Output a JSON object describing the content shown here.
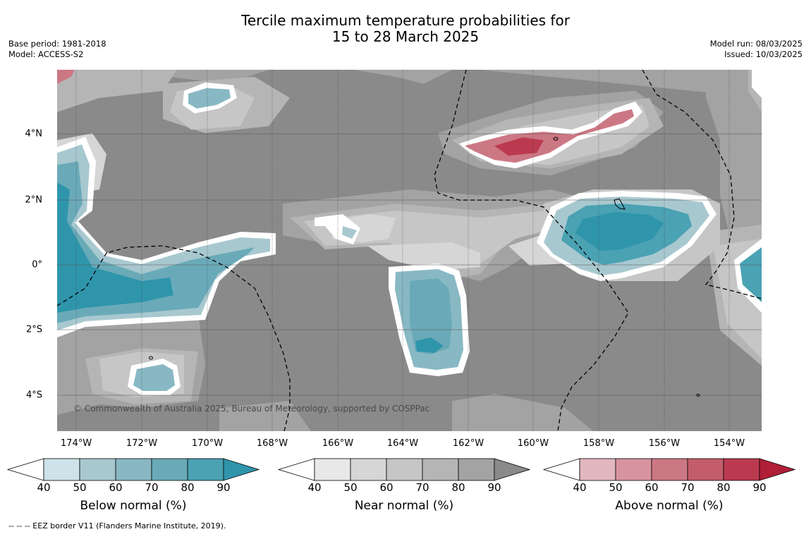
{
  "header": {
    "title_line1": "Tercile maximum temperature probabilities for",
    "title_line2": "15 to 28 March 2025",
    "base_period": "Base period: 1981-2018",
    "model": "Model: ACCESS-S2",
    "model_run": "Model run: 08/03/2025",
    "issued": "Issued: 10/03/2025"
  },
  "map": {
    "lat_labels": [
      "4°N",
      "2°N",
      "0°",
      "2°S",
      "4°S"
    ],
    "lon_labels": [
      "174°W",
      "172°W",
      "170°W",
      "168°W",
      "166°W",
      "164°W",
      "162°W",
      "160°W",
      "158°W",
      "156°W",
      "154°W"
    ],
    "copyright": "© Commonwealth of Australia 2025, Bureau of Meteorology, supported by COSPPac",
    "colors": {
      "near_background": "#8a8a8a",
      "below": "#3a98ad",
      "above": "#c24a5e",
      "eez_line": "#000000"
    }
  },
  "legends": [
    {
      "name": "Below normal (%)",
      "ticks": [
        "40",
        "50",
        "60",
        "70",
        "80",
        "90"
      ],
      "colors": [
        "#ffffff",
        "#cde3e9",
        "#a8c8cf",
        "#88b8c3",
        "#6aaab8",
        "#4aa2b3",
        "#2f95ab"
      ]
    },
    {
      "name": "Near normal (%)",
      "ticks": [
        "40",
        "50",
        "60",
        "70",
        "80",
        "90"
      ],
      "colors": [
        "#ffffff",
        "#e8e8e8",
        "#d6d6d6",
        "#c6c6c6",
        "#b5b5b5",
        "#a3a3a3",
        "#8a8a8a"
      ]
    },
    {
      "name": "Above normal (%)",
      "ticks": [
        "40",
        "50",
        "60",
        "70",
        "80",
        "90"
      ],
      "colors": [
        "#ffffff",
        "#e3b7bf",
        "#d7949f",
        "#cc7884",
        "#c35d6c",
        "#bb3a50",
        "#b01e38"
      ]
    }
  ],
  "footer": {
    "eez_note": "--  --  -- EEZ border V11 (Flanders Marine Institute, 2019)."
  }
}
